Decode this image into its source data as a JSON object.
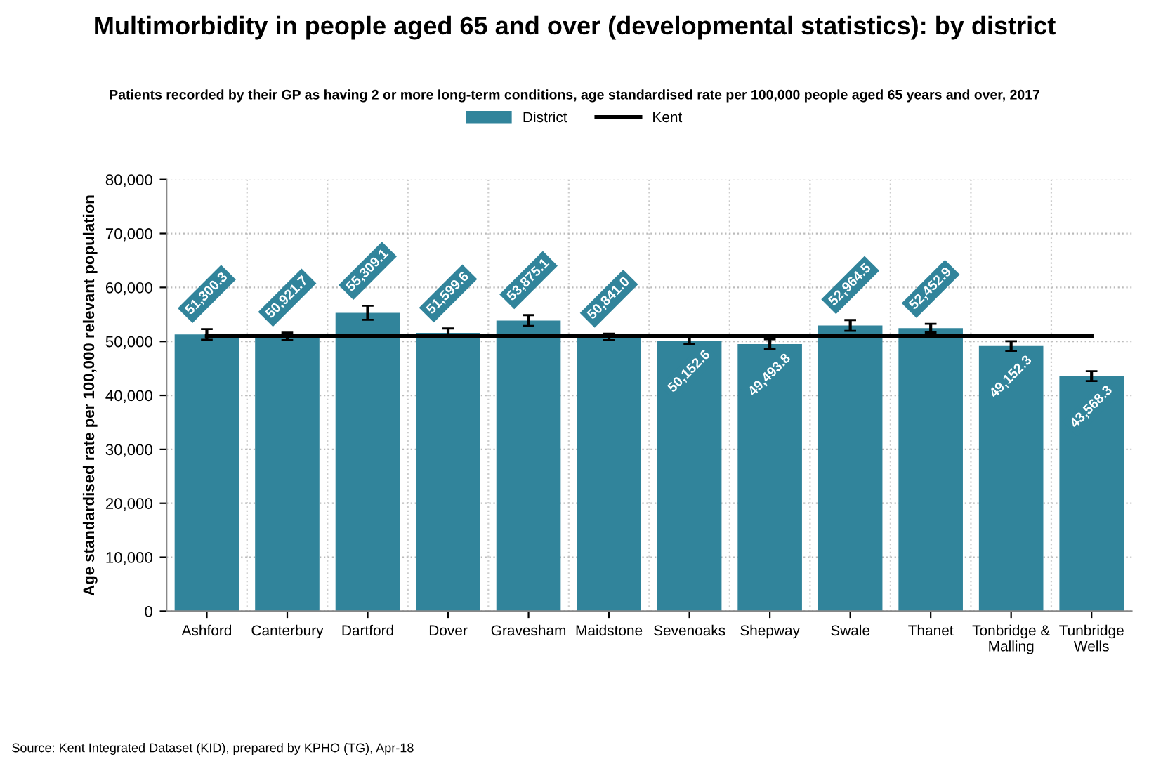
{
  "chart_data": {
    "type": "bar",
    "title": "Multimorbidity in people aged 65 and over (developmental statistics): by district",
    "subtitle": "Patients recorded by their GP as having 2 or more long-term conditions, age standardised rate per 100,000 people aged 65 years and over, 2017",
    "ylabel": "Age standardised rate per 100,000 relevant population",
    "categories": [
      "Ashford",
      "Canterbury",
      "Dartford",
      "Dover",
      "Gravesham",
      "Maidstone",
      "Sevenoaks",
      "Shepway",
      "Swale",
      "Thanet",
      "Tonbridge & Malling",
      "Tunbridge Wells"
    ],
    "series": [
      {
        "name": "District",
        "color": "#31849b",
        "values": [
          51300.3,
          50921.7,
          55309.1,
          51599.6,
          53875.1,
          50841.0,
          50152.6,
          49493.8,
          52964.5,
          52452.9,
          49152.3,
          43568.3
        ],
        "errors": [
          1000,
          700,
          1300,
          800,
          1000,
          600,
          700,
          900,
          1000,
          800,
          900,
          900
        ],
        "value_labels": [
          "51,300.3",
          "50,921.7",
          "55,309.1",
          "51,599.6",
          "53,875.1",
          "50,841.0",
          "50,152.6",
          "49,493.8",
          "52,964.5",
          "52,452.9",
          "49,152.3",
          "43,568.3"
        ]
      },
      {
        "name": "Kent",
        "type": "line",
        "color": "#000000",
        "values": [
          51000,
          51000,
          51000,
          51000,
          51000,
          51000,
          51000,
          51000,
          51000,
          51000,
          51000,
          51000
        ]
      }
    ],
    "ylim": [
      0,
      80000
    ],
    "yticks": [
      {
        "value": 0,
        "label": "0"
      },
      {
        "value": 10000,
        "label": "10,000"
      },
      {
        "value": 20000,
        "label": "20,000"
      },
      {
        "value": 30000,
        "label": "30,000"
      },
      {
        "value": 40000,
        "label": "40,000"
      },
      {
        "value": 50000,
        "label": "50,000"
      },
      {
        "value": 60000,
        "label": "60,000"
      },
      {
        "value": 70000,
        "label": "70,000"
      },
      {
        "value": 80000,
        "label": "80,000"
      }
    ],
    "grid": true,
    "legend": "top",
    "annotations": [
      "Source: Kent Integrated Dataset (KID), prepared by KPHO (TG), Apr-18"
    ]
  }
}
